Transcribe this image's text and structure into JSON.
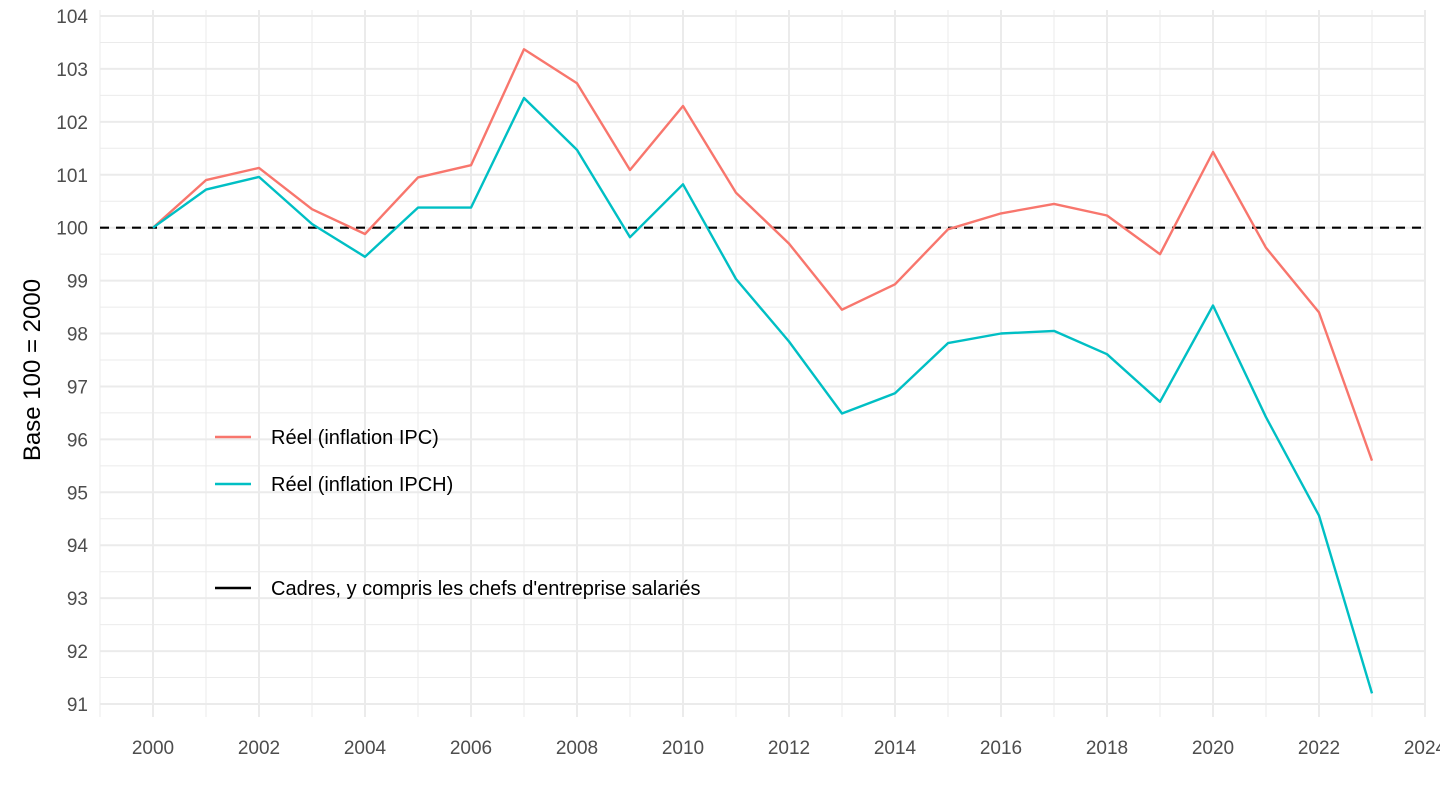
{
  "chart_data": {
    "type": "line",
    "ylabel": "Base 100 = 2000",
    "xlim": [
      1999,
      2024
    ],
    "ylim": [
      90.7,
      104
    ],
    "x_ticks": [
      "2000",
      "2002",
      "2004",
      "2006",
      "2008",
      "2010",
      "2012",
      "2014",
      "2016",
      "2018",
      "2020",
      "2022",
      "2024"
    ],
    "y_ticks": [
      "91",
      "92",
      "93",
      "94",
      "95",
      "96",
      "97",
      "98",
      "99",
      "100",
      "101",
      "102",
      "103",
      "104"
    ],
    "grid": true,
    "legend_position": "inside-left",
    "x": [
      2000,
      2001,
      2002,
      2003,
      2004,
      2005,
      2006,
      2007,
      2008,
      2009,
      2010,
      2011,
      2012,
      2013,
      2014,
      2015,
      2016,
      2017,
      2018,
      2019,
      2020,
      2021,
      2022,
      2023
    ],
    "series": [
      {
        "name": "Réel (inflation IPC)",
        "color": "#f8766d",
        "values": [
          100.0,
          100.9,
          101.13,
          100.35,
          99.88,
          100.95,
          101.18,
          103.37,
          102.73,
          101.09,
          102.3,
          100.66,
          99.7,
          98.45,
          98.93,
          99.97,
          100.27,
          100.45,
          100.23,
          99.5,
          101.43,
          99.62,
          98.4,
          95.6
        ]
      },
      {
        "name": "Réel (inflation IPCH)",
        "color": "#00bfc4",
        "values": [
          100.0,
          100.72,
          100.96,
          100.07,
          99.45,
          100.38,
          100.38,
          102.45,
          101.47,
          99.82,
          100.82,
          99.03,
          97.85,
          96.49,
          96.87,
          97.82,
          98.0,
          98.05,
          97.61,
          96.71,
          98.53,
          96.42,
          94.56,
          91.2
        ]
      }
    ],
    "reference_line": {
      "name": "Cadres, y compris les chefs d'entreprise salariés",
      "value": 100,
      "color": "#000000",
      "style": "dashed"
    }
  }
}
